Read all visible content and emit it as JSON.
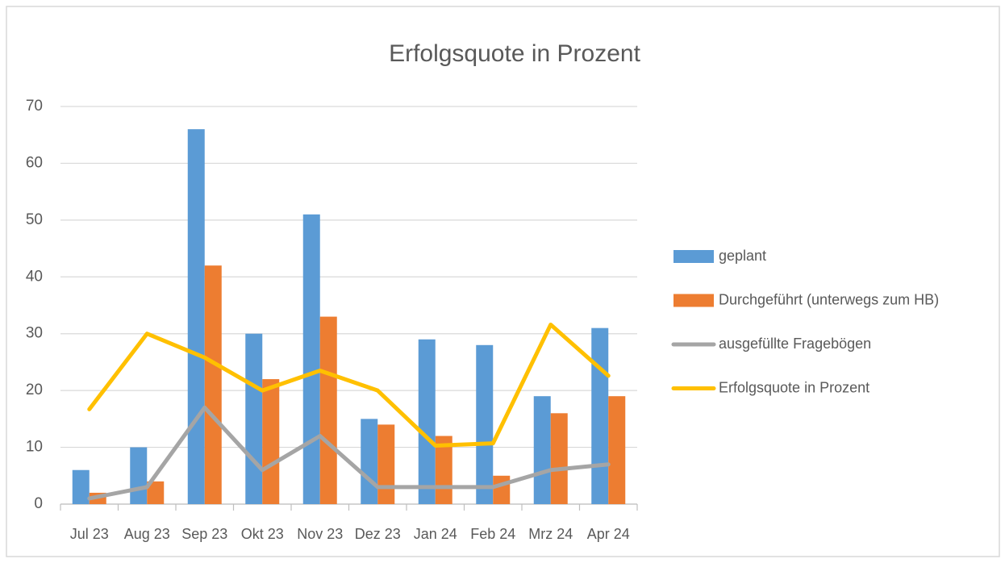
{
  "chart_data": {
    "type": "bar",
    "title": "Erfolgsquote in Prozent",
    "categories": [
      "Jul 23",
      "Aug 23",
      "Sep 23",
      "Okt 23",
      "Nov 23",
      "Dez 23",
      "Jan 24",
      "Feb 24",
      "Mrz 24",
      "Apr 24"
    ],
    "series": [
      {
        "name": "geplant",
        "type": "bar",
        "color": "#5b9bd5",
        "values": [
          6,
          10,
          66,
          30,
          51,
          15,
          29,
          28,
          19,
          31
        ]
      },
      {
        "name": "Durchgeführt (unterwegs zum HB)",
        "type": "bar",
        "color": "#ed7d31",
        "values": [
          2,
          4,
          42,
          22,
          33,
          14,
          12,
          5,
          16,
          19
        ]
      },
      {
        "name": "ausgefüllte Fragebögen",
        "type": "line",
        "color": "#a5a5a5",
        "values": [
          1,
          3,
          17,
          6,
          12,
          3,
          3,
          3,
          6,
          7
        ]
      },
      {
        "name": "Erfolgsquote in Prozent",
        "type": "line",
        "color": "#ffc000",
        "values": [
          16.7,
          30,
          25.8,
          20,
          23.5,
          20,
          10.3,
          10.7,
          31.6,
          22.6
        ]
      }
    ],
    "ylim": [
      0,
      70
    ],
    "yticks": [
      0,
      10,
      20,
      30,
      40,
      50,
      60,
      70
    ],
    "grid": true,
    "legend": "right"
  }
}
